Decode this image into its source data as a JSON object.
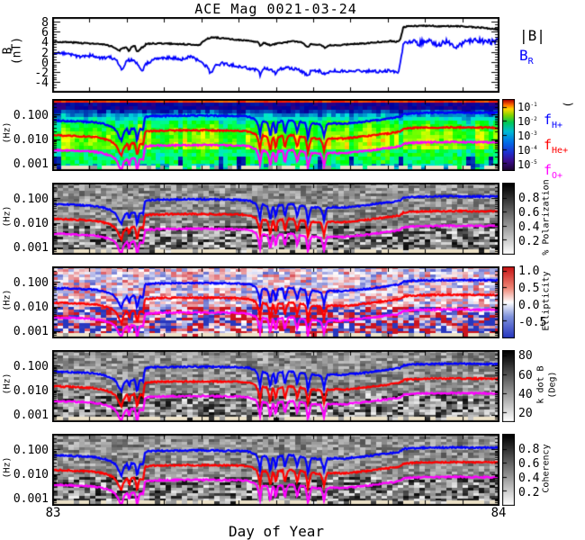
{
  "title": "ACE Mag 0021-03-24",
  "xaxis": {
    "label": "Day of Year",
    "tick_left": "83",
    "tick_right": "84"
  },
  "legend": {
    "bmag": "|B|",
    "br": {
      "base": "B",
      "sub": "R"
    }
  },
  "species_labels": [
    {
      "base": "f",
      "sub": "H+",
      "color": "#0000ff"
    },
    {
      "base": "f",
      "sub": "He+",
      "color": "#ff0000"
    },
    {
      "base": "f",
      "sub": "O+",
      "color": "#ff00ff"
    }
  ],
  "left_labels": {
    "p1_line1": "B",
    "p1_line2": "(nT)",
    "freq_fragment": "(Hz)"
  },
  "chart_data": {
    "type": "heatmap",
    "description": "Multi-panel magnetometer wave spectrogram",
    "x_range_day_of_year": [
      83,
      84
    ],
    "panel1": {
      "type": "line",
      "ylabel": "B (nT)",
      "yticks": [
        "8",
        "6",
        "4",
        "2",
        "0",
        "-2",
        "-4"
      ],
      "yrange": [
        8.9,
        -6.1
      ],
      "series": [
        {
          "name": "|B|",
          "color": "#000000",
          "points": [
            [
              0,
              4
            ],
            [
              0.04,
              3.9
            ],
            [
              0.08,
              3.7
            ],
            [
              0.11,
              3.5
            ],
            [
              0.13,
              3.2
            ],
            [
              0.14,
              2.8
            ],
            [
              0.15,
              2.2
            ],
            [
              0.155,
              2.6
            ],
            [
              0.165,
              3
            ],
            [
              0.172,
              2
            ],
            [
              0.178,
              3
            ],
            [
              0.185,
              3.1
            ],
            [
              0.19,
              1.9
            ],
            [
              0.2,
              2.9
            ],
            [
              0.205,
              3
            ],
            [
              0.21,
              3.6
            ],
            [
              0.24,
              3.7
            ],
            [
              0.27,
              3.6
            ],
            [
              0.3,
              3.5
            ],
            [
              0.33,
              3.4
            ],
            [
              0.345,
              4.6
            ],
            [
              0.36,
              4.9
            ],
            [
              0.38,
              4.7
            ],
            [
              0.41,
              4.4
            ],
            [
              0.44,
              4.2
            ],
            [
              0.46,
              3.9
            ],
            [
              0.465,
              3.2
            ],
            [
              0.472,
              3.8
            ],
            [
              0.488,
              3.3
            ],
            [
              0.5,
              3.6
            ],
            [
              0.52,
              3.9
            ],
            [
              0.545,
              4.1
            ],
            [
              0.56,
              3.8
            ],
            [
              0.572,
              2.9
            ],
            [
              0.578,
              3.6
            ],
            [
              0.6,
              3.4
            ],
            [
              0.61,
              2.7
            ],
            [
              0.62,
              3.3
            ],
            [
              0.64,
              3.3
            ],
            [
              0.66,
              3.5
            ],
            [
              0.68,
              3.6
            ],
            [
              0.7,
              3.7
            ],
            [
              0.72,
              3.9
            ],
            [
              0.74,
              4
            ],
            [
              0.755,
              4.2
            ],
            [
              0.77,
              4
            ],
            [
              0.778,
              4.3
            ],
            [
              0.785,
              6.9
            ],
            [
              0.8,
              7.1
            ],
            [
              0.83,
              7.2
            ],
            [
              0.86,
              7.1
            ],
            [
              0.9,
              7.1
            ],
            [
              0.93,
              7
            ],
            [
              0.96,
              6.8
            ],
            [
              1,
              6.4
            ]
          ]
        },
        {
          "name": "B_R",
          "color": "#0000ff",
          "points": [
            [
              0,
              2
            ],
            [
              0.03,
              1.6
            ],
            [
              0.06,
              1.1
            ],
            [
              0.09,
              1.3
            ],
            [
              0.11,
              0.7
            ],
            [
              0.13,
              0.9
            ],
            [
              0.145,
              0.2
            ],
            [
              0.15,
              -0.8
            ],
            [
              0.158,
              -1.6
            ],
            [
              0.165,
              0.3
            ],
            [
              0.175,
              0.4
            ],
            [
              0.19,
              -0.2
            ],
            [
              0.2,
              -2
            ],
            [
              0.21,
              -0.3
            ],
            [
              0.23,
              0.6
            ],
            [
              0.26,
              0.9
            ],
            [
              0.29,
              0.5
            ],
            [
              0.31,
              1.1
            ],
            [
              0.33,
              0.2
            ],
            [
              0.345,
              -0.9
            ],
            [
              0.355,
              -2.4
            ],
            [
              0.365,
              -0.6
            ],
            [
              0.38,
              -0.3
            ],
            [
              0.4,
              -0.6
            ],
            [
              0.42,
              -1
            ],
            [
              0.44,
              -1.3
            ],
            [
              0.46,
              -1.5
            ],
            [
              0.465,
              -2.6
            ],
            [
              0.475,
              -1.2
            ],
            [
              0.49,
              -1.6
            ],
            [
              0.5,
              -2.3
            ],
            [
              0.51,
              -1.4
            ],
            [
              0.53,
              -1.2
            ],
            [
              0.55,
              -1.5
            ],
            [
              0.572,
              -2.8
            ],
            [
              0.58,
              -1.6
            ],
            [
              0.6,
              -1.8
            ],
            [
              0.61,
              -2.5
            ],
            [
              0.625,
              -1.7
            ],
            [
              0.65,
              -1.8
            ],
            [
              0.67,
              -1.7
            ],
            [
              0.7,
              -1.8
            ],
            [
              0.73,
              -1.9
            ],
            [
              0.755,
              -1.7
            ],
            [
              0.775,
              -2
            ],
            [
              0.785,
              3.2
            ],
            [
              0.8,
              4.3
            ],
            [
              0.82,
              3.6
            ],
            [
              0.84,
              4.4
            ],
            [
              0.86,
              3.2
            ],
            [
              0.88,
              4
            ],
            [
              0.9,
              2.9
            ],
            [
              0.92,
              3.8
            ],
            [
              0.95,
              4.3
            ],
            [
              0.97,
              3.9
            ],
            [
              1,
              4.1
            ]
          ]
        }
      ]
    },
    "spectro_freq_axis": {
      "yticks": [
        "0.100",
        "0.010",
        "0.001"
      ],
      "fmax": 0.44,
      "fmin": 0.0005
    },
    "ion_lines": {
      "fH_points": [
        [
          0,
          0.058
        ],
        [
          0.03,
          0.056
        ],
        [
          0.06,
          0.053
        ],
        [
          0.09,
          0.05
        ],
        [
          0.11,
          0.044
        ],
        [
          0.13,
          0.034
        ],
        [
          0.14,
          0.026
        ],
        [
          0.15,
          0.012
        ],
        [
          0.155,
          0.0085
        ],
        [
          0.16,
          0.018
        ],
        [
          0.168,
          0.027
        ],
        [
          0.172,
          0.012
        ],
        [
          0.176,
          0.026
        ],
        [
          0.184,
          0.028
        ],
        [
          0.19,
          0.0065
        ],
        [
          0.196,
          0.026
        ],
        [
          0.204,
          0.024
        ],
        [
          0.208,
          0.082
        ],
        [
          0.23,
          0.088
        ],
        [
          0.26,
          0.09
        ],
        [
          0.3,
          0.092
        ],
        [
          0.34,
          0.092
        ],
        [
          0.38,
          0.09
        ],
        [
          0.42,
          0.088
        ],
        [
          0.44,
          0.082
        ],
        [
          0.455,
          0.062
        ],
        [
          0.465,
          0.013
        ],
        [
          0.47,
          0.055
        ],
        [
          0.48,
          0.05
        ],
        [
          0.488,
          0.0095
        ],
        [
          0.494,
          0.052
        ],
        [
          0.5,
          0.013
        ],
        [
          0.505,
          0.05
        ],
        [
          0.515,
          0.055
        ],
        [
          0.52,
          0.014
        ],
        [
          0.528,
          0.058
        ],
        [
          0.54,
          0.056
        ],
        [
          0.548,
          0.016
        ],
        [
          0.554,
          0.052
        ],
        [
          0.565,
          0.048
        ],
        [
          0.572,
          0.0075
        ],
        [
          0.58,
          0.045
        ],
        [
          0.59,
          0.042
        ],
        [
          0.6,
          0.04
        ],
        [
          0.608,
          0.011
        ],
        [
          0.615,
          0.042
        ],
        [
          0.63,
          0.044
        ],
        [
          0.65,
          0.042
        ],
        [
          0.67,
          0.046
        ],
        [
          0.69,
          0.05
        ],
        [
          0.71,
          0.055
        ],
        [
          0.73,
          0.062
        ],
        [
          0.75,
          0.068
        ],
        [
          0.765,
          0.075
        ],
        [
          0.778,
          0.082
        ],
        [
          0.785,
          0.105
        ],
        [
          0.8,
          0.112
        ],
        [
          0.83,
          0.118
        ],
        [
          0.86,
          0.12
        ],
        [
          0.9,
          0.122
        ],
        [
          0.94,
          0.12
        ],
        [
          0.97,
          0.119
        ],
        [
          1,
          0.118
        ]
      ],
      "ratios": {
        "H+": 1,
        "He+": 0.25,
        "O+": 0.0625
      },
      "colors": {
        "H+": "#0000ff",
        "He+": "#ff0000",
        "O+": "#ff00ff"
      }
    },
    "spectro_panels": [
      {
        "name": "wave power",
        "colormap": "rainbow",
        "colorbar": {
          "units_paren": "(",
          "range_log": [
            -0.5,
            -5.5
          ],
          "labels": [
            {
              "base": "10",
              "sup": "-1"
            },
            {
              "base": "10",
              "sup": "-2"
            },
            {
              "base": "10",
              "sup": "-3"
            },
            {
              "base": "10",
              "sup": "-4"
            },
            {
              "base": "10",
              "sup": "-5"
            }
          ]
        }
      },
      {
        "name": "polarization",
        "colormap": "gray",
        "colorbar": {
          "title": "% Polarization",
          "range": [
            1,
            0
          ],
          "labels": [
            "0.8",
            "0.6",
            "0.4",
            "0.2"
          ]
        }
      },
      {
        "name": "ellipticity",
        "colormap": "redblue",
        "colorbar": {
          "title": "Ellipticity",
          "range": [
            1.1,
            -1.0
          ],
          "labels": [
            "1.0",
            "0.5",
            "0.0",
            "-0.5"
          ]
        }
      },
      {
        "name": "k dot B",
        "colormap": "gray",
        "colorbar": {
          "title": "k dot B",
          "title2": "(Deg)",
          "range": [
            85,
            10
          ],
          "labels": [
            "80",
            "60",
            "40",
            "20"
          ]
        }
      },
      {
        "name": "coherency",
        "colormap": "gray",
        "colorbar": {
          "title": "Coherency",
          "range": [
            1,
            0
          ],
          "labels": [
            "0.8",
            "0.6",
            "0.4",
            "0.2"
          ]
        }
      }
    ]
  }
}
